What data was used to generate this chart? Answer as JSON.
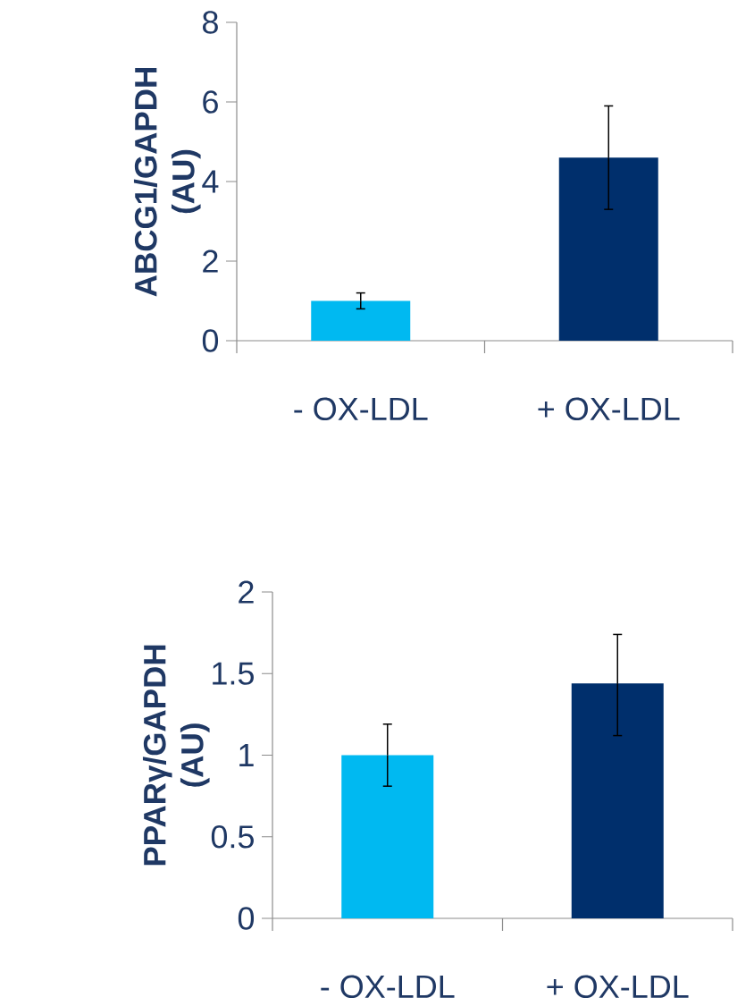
{
  "chart_data": [
    {
      "type": "bar",
      "ylabel": "ABCG1/GAPDH (AU)",
      "categories": [
        "- OX-LDL",
        "+ OX-LDL"
      ],
      "values": [
        1.0,
        4.6
      ],
      "errors": [
        0.2,
        1.3
      ],
      "colors": [
        "#00b9f1",
        "#002f6c"
      ],
      "ylim": [
        0,
        8
      ],
      "yticks": [
        0,
        2,
        4,
        6,
        8
      ]
    },
    {
      "type": "bar",
      "ylabel": "PPARγ/GAPDH (AU)",
      "categories": [
        "- OX-LDL",
        "+ OX-LDL"
      ],
      "values": [
        1.0,
        1.44
      ],
      "errors": [
        0.19,
        [
          1.12,
          1.74
        ]
      ],
      "colors": [
        "#00b9f1",
        "#002f6c"
      ],
      "ylim": [
        0,
        2
      ],
      "yticks": [
        0,
        0.5,
        1,
        1.5,
        2
      ]
    }
  ]
}
